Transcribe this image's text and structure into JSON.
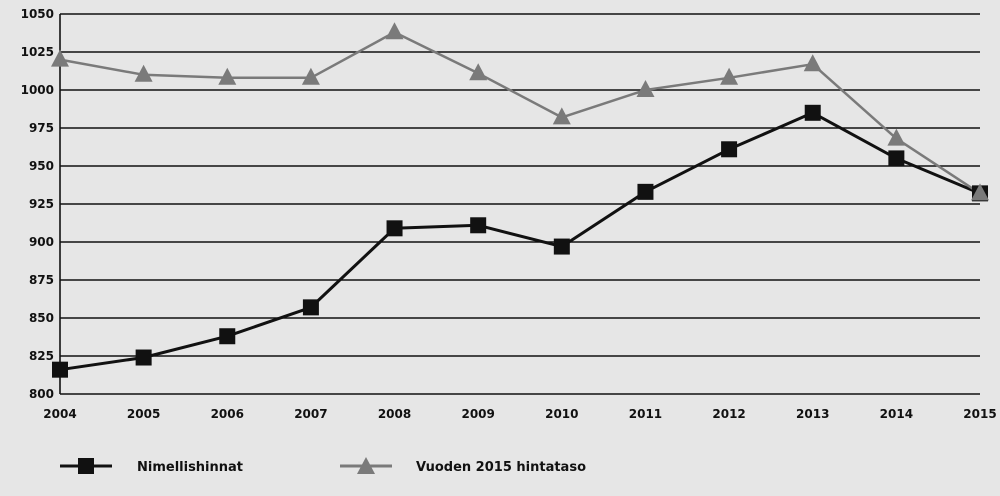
{
  "chart_data": {
    "type": "line",
    "title": "",
    "xlabel": "",
    "ylabel": "",
    "x": [
      "2004",
      "2005",
      "2006",
      "2007",
      "2008",
      "2009",
      "2010",
      "2011",
      "2012",
      "2013",
      "2014",
      "2015"
    ],
    "ylim": [
      800,
      1050
    ],
    "yticks": [
      800,
      825,
      850,
      875,
      900,
      925,
      950,
      975,
      1000,
      1025,
      1050
    ],
    "grid": true,
    "legend_position": "bottom",
    "series": [
      {
        "name": "Nimellishinnat",
        "marker": "square",
        "color": "#111111",
        "values": [
          816,
          824,
          838,
          857,
          909,
          911,
          897,
          933,
          961,
          985,
          955,
          932
        ]
      },
      {
        "name": "Vuoden 2015 hintataso",
        "marker": "triangle",
        "color": "#7a7a7a",
        "values": [
          1020,
          1010,
          1008,
          1008,
          1038,
          1011,
          982,
          1000,
          1008,
          1017,
          968,
          932
        ]
      }
    ]
  }
}
